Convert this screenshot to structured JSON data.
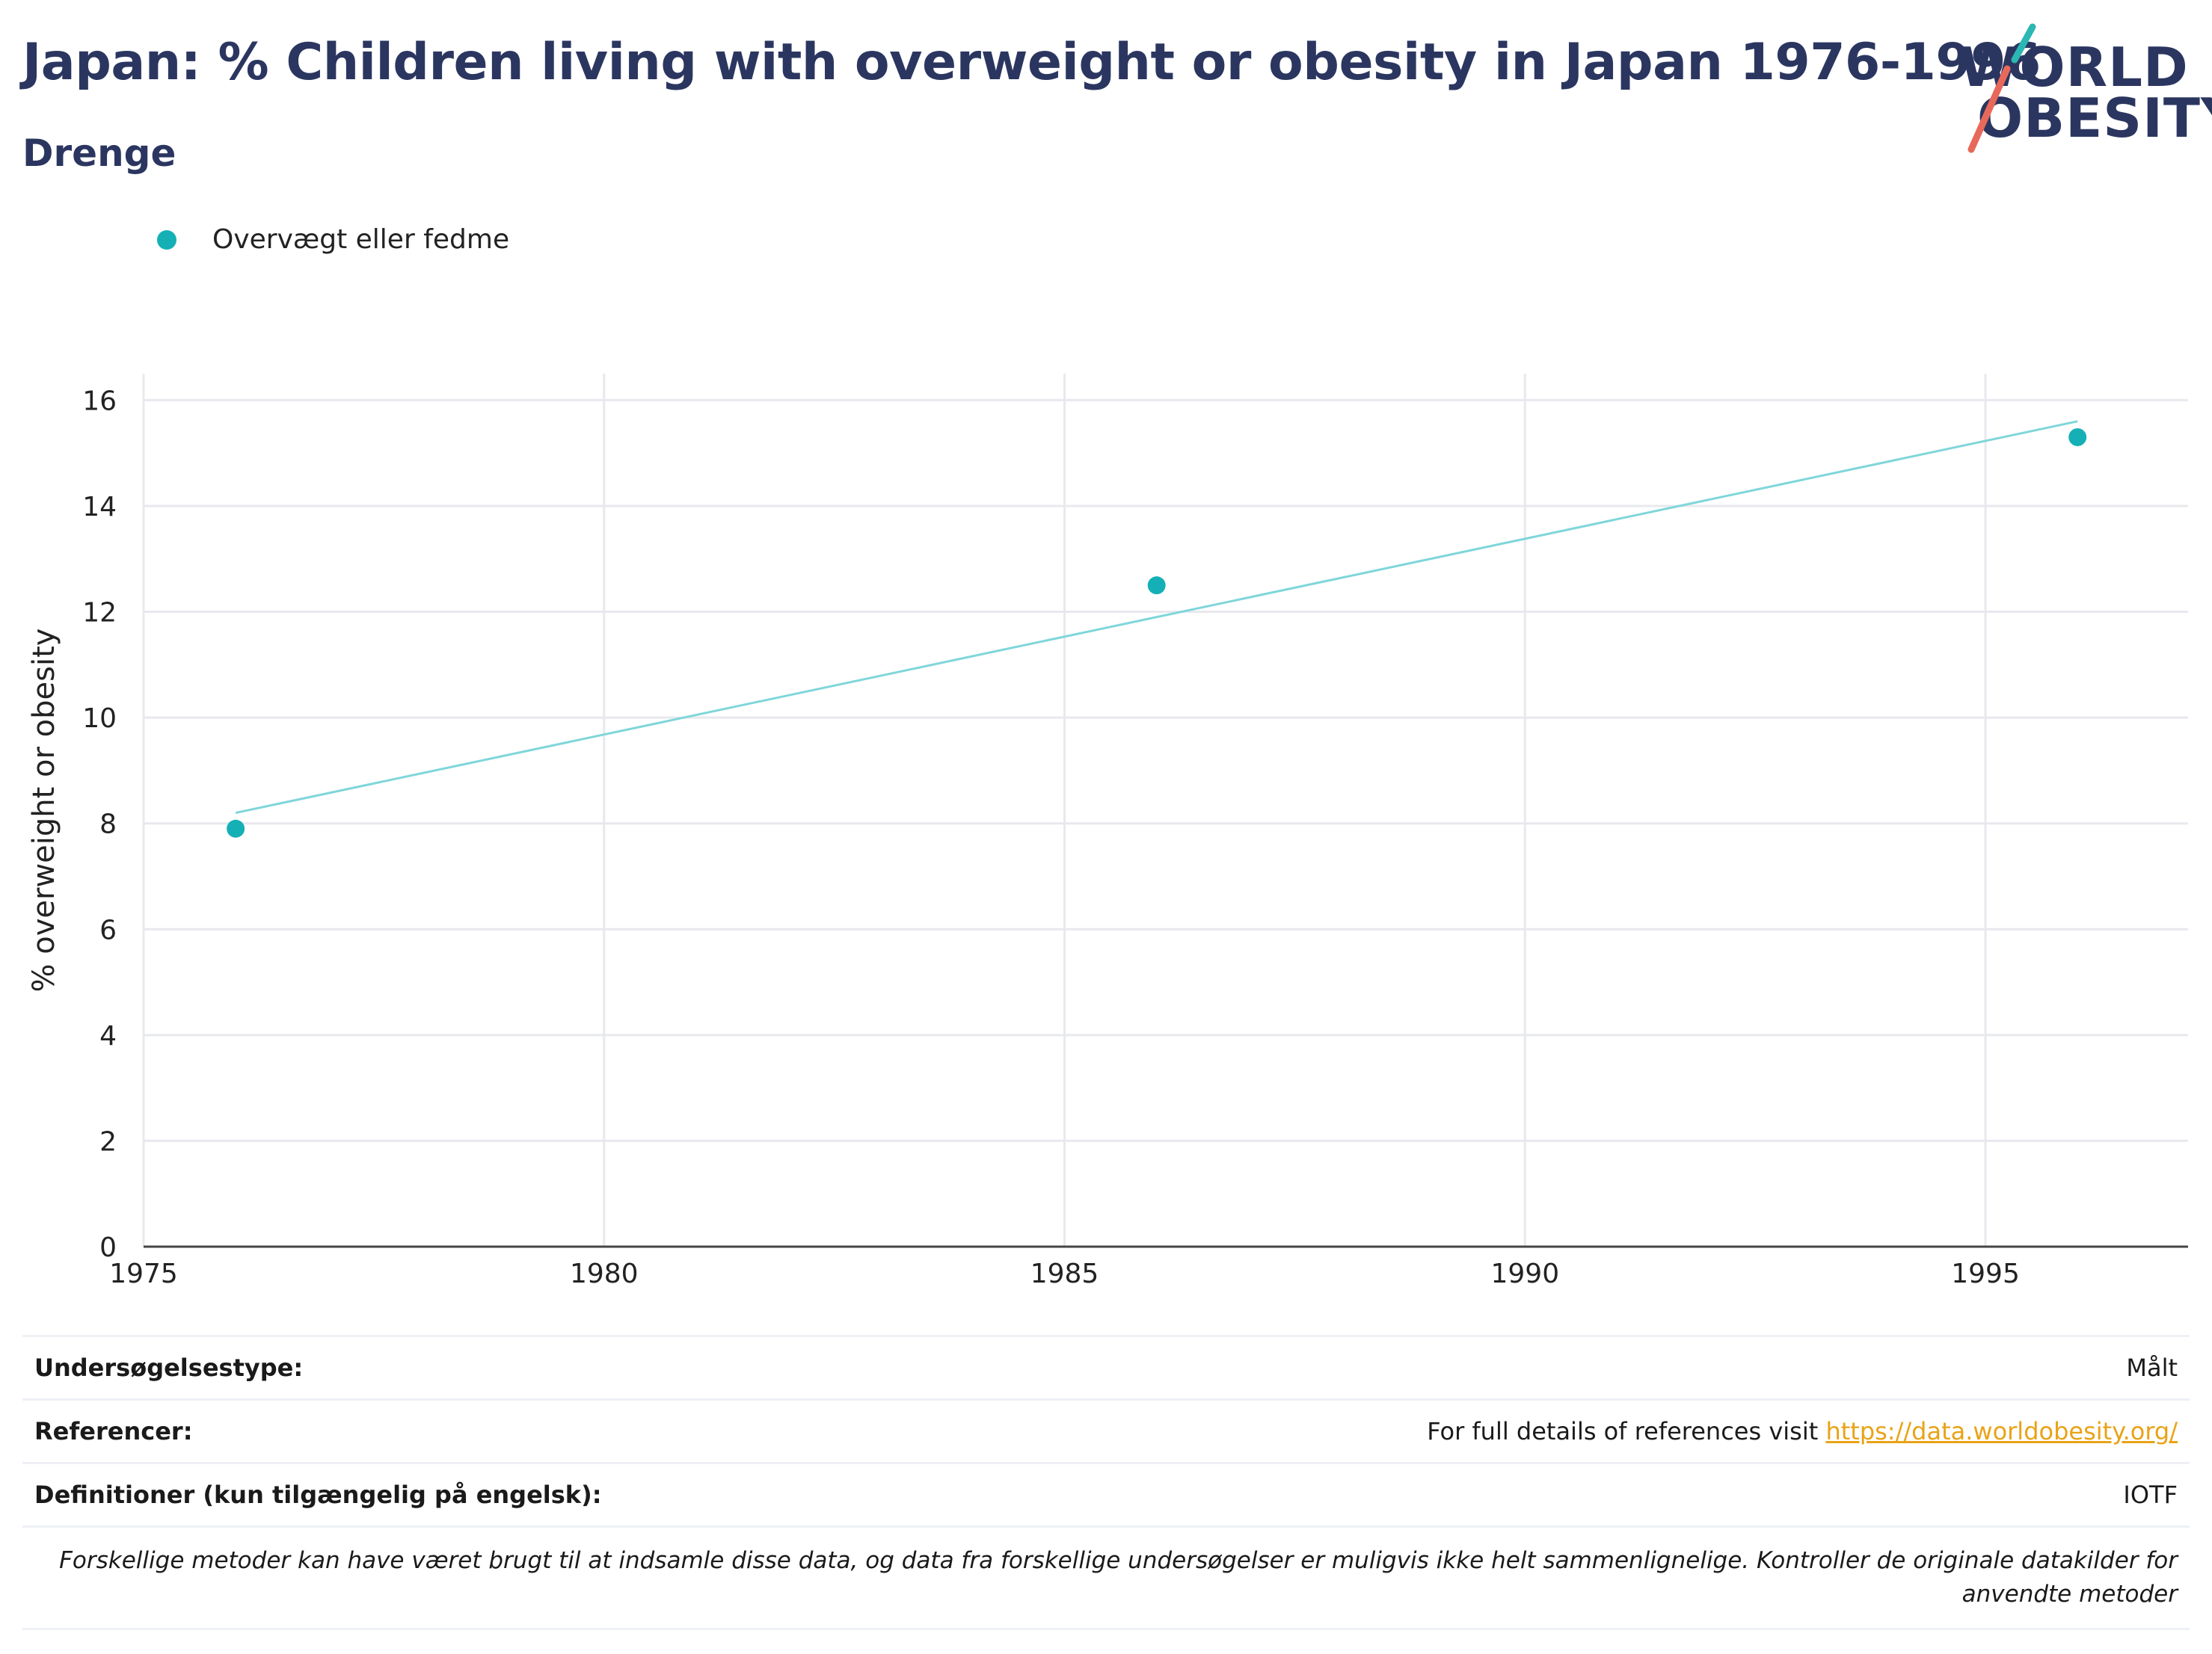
{
  "header": {
    "title": "Japan: % Children living with overweight or obesity in Japan 1976-1996",
    "subtitle": "Drenge"
  },
  "logo": {
    "line1": "WORLD",
    "line2": "OBESITY"
  },
  "legend": {
    "label": "Overvægt eller fedme",
    "color": "#15b0b6"
  },
  "chart_data": {
    "type": "scatter",
    "title": "Japan: % Children living with overweight or obesity in Japan 1976-1996",
    "subtitle": "Drenge",
    "xlabel": "",
    "ylabel": "% overweight or obesity",
    "xlim": [
      1975,
      1997.2
    ],
    "ylim": [
      0,
      16.5
    ],
    "xticks": [
      1975,
      1980,
      1985,
      1990,
      1995
    ],
    "yticks": [
      0,
      2,
      4,
      6,
      8,
      10,
      12,
      14,
      16
    ],
    "grid": true,
    "legend_position": "top-left",
    "series": [
      {
        "name": "Overvægt eller fedme",
        "color": "#15b0b6",
        "x": [
          1976,
          1986,
          1996
        ],
        "y": [
          7.9,
          12.5,
          15.3
        ]
      }
    ],
    "trendline": {
      "color": "#7fd6da",
      "x": [
        1976,
        1996
      ],
      "y": [
        8.2,
        15.6
      ]
    }
  },
  "info": {
    "survey_type_label": "Undersøgelsestype:",
    "survey_type_value": "Målt",
    "references_label": "Referencer:",
    "references_text": "For full details of references visit ",
    "references_link": "https://data.worldobesity.org/",
    "definitions_label": "Definitioner (kun tilgængelig på engelsk):",
    "definitions_value": "IOTF",
    "note": "Forskellige metoder kan have været brugt til at indsamle disse data, og data fra forskellige undersøgelser er muligvis ikke helt sammenlignelige. Kontroller de originale datakilder for anvendte metoder"
  }
}
